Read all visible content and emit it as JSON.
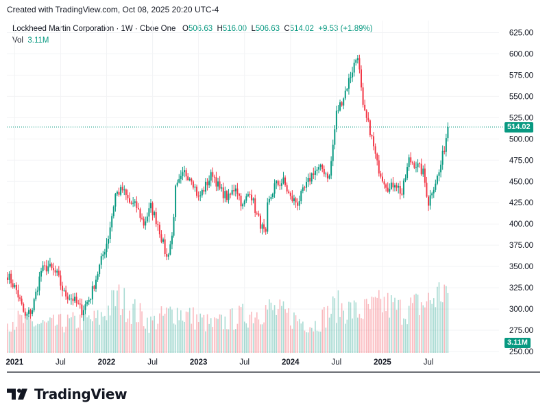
{
  "caption": "Created with TradingView.com, Oct 08, 2025 20:20 UTC-4",
  "legend": {
    "symbol": "Lockheed Martin Corporation · 1W · Cboe One",
    "o_label": "O",
    "o_value": "506.63",
    "h_label": "H",
    "h_value": "516.00",
    "l_label": "L",
    "l_value": "506.63",
    "c_label": "C",
    "c_value": "514.02",
    "change": "+9.53 (+1.89%)",
    "vol_label": "Vol",
    "vol_value": "3.11M"
  },
  "brand": {
    "name": "TradingView"
  },
  "colors": {
    "up": "#089981",
    "down": "#F23645",
    "grid": "#F2F3F5",
    "text": "#131722"
  },
  "chart_data": {
    "type": "candlestick",
    "title": "Lockheed Martin Corporation · 1W · Cboe One",
    "y_ticks": [
      "625.00",
      "600.00",
      "575.00",
      "550.00",
      "525.00",
      "500.00",
      "475.00",
      "450.00",
      "425.00",
      "400.00",
      "375.00",
      "350.00",
      "325.00",
      "300.00",
      "275.00",
      "250.00"
    ],
    "x_ticks": [
      {
        "label": "2021",
        "bold": true
      },
      {
        "label": "Jul",
        "bold": false
      },
      {
        "label": "2022",
        "bold": true
      },
      {
        "label": "Jul",
        "bold": false
      },
      {
        "label": "2023",
        "bold": true
      },
      {
        "label": "Jul",
        "bold": false
      },
      {
        "label": "2024",
        "bold": true
      },
      {
        "label": "Jul",
        "bold": false
      },
      {
        "label": "2025",
        "bold": true
      },
      {
        "label": "Jul",
        "bold": false
      }
    ],
    "ylim": [
      250,
      625
    ],
    "last_price": "514.02",
    "last_volume": "3.11M",
    "price_path": [
      [
        "2020-12-28",
        340
      ],
      [
        "2021-02-01",
        322
      ],
      [
        "2021-03-08",
        290
      ],
      [
        "2021-04-05",
        300
      ],
      [
        "2021-05-10",
        345
      ],
      [
        "2021-06-07",
        350
      ],
      [
        "2021-07-12",
        340
      ],
      [
        "2021-08-09",
        318
      ],
      [
        "2021-09-13",
        312
      ],
      [
        "2021-10-18",
        298
      ],
      [
        "2021-11-22",
        315
      ],
      [
        "2021-12-27",
        350
      ],
      [
        "2022-01-31",
        385
      ],
      [
        "2022-02-28",
        435
      ],
      [
        "2022-03-28",
        440
      ],
      [
        "2022-04-25",
        425
      ],
      [
        "2022-05-23",
        420
      ],
      [
        "2022-06-20",
        400
      ],
      [
        "2022-07-18",
        420
      ],
      [
        "2022-08-15",
        400
      ],
      [
        "2022-09-19",
        360
      ],
      [
        "2022-10-10",
        385
      ],
      [
        "2022-10-24",
        440
      ],
      [
        "2022-11-28",
        460
      ],
      [
        "2022-12-26",
        455
      ],
      [
        "2023-01-23",
        430
      ],
      [
        "2023-02-20",
        445
      ],
      [
        "2023-03-20",
        460
      ],
      [
        "2023-04-17",
        440
      ],
      [
        "2023-05-22",
        430
      ],
      [
        "2023-06-19",
        445
      ],
      [
        "2023-07-17",
        420
      ],
      [
        "2023-08-14",
        440
      ],
      [
        "2023-09-11",
        410
      ],
      [
        "2023-10-16",
        385
      ],
      [
        "2023-10-23",
        420
      ],
      [
        "2023-11-20",
        445
      ],
      [
        "2023-12-25",
        450
      ],
      [
        "2024-01-22",
        430
      ],
      [
        "2024-02-19",
        425
      ],
      [
        "2024-03-25",
        445
      ],
      [
        "2024-04-22",
        462
      ],
      [
        "2024-05-27",
        465
      ],
      [
        "2024-06-24",
        455
      ],
      [
        "2024-07-22",
        530
      ],
      [
        "2024-08-19",
        550
      ],
      [
        "2024-09-16",
        575
      ],
      [
        "2024-10-14",
        600
      ],
      [
        "2024-11-04",
        535
      ],
      [
        "2024-12-02",
        510
      ],
      [
        "2024-12-30",
        470
      ],
      [
        "2025-01-20",
        455
      ],
      [
        "2025-02-17",
        440
      ],
      [
        "2025-03-10",
        450
      ],
      [
        "2025-04-07",
        435
      ],
      [
        "2025-05-05",
        475
      ],
      [
        "2025-06-02",
        470
      ],
      [
        "2025-06-30",
        460
      ],
      [
        "2025-07-21",
        425
      ],
      [
        "2025-08-04",
        440
      ],
      [
        "2025-09-01",
        460
      ],
      [
        "2025-09-22",
        490
      ],
      [
        "2025-10-06",
        514.02
      ]
    ],
    "volume_path_millions": [
      [
        "2020-12-28",
        1.6
      ],
      [
        "2021-06-07",
        1.3
      ],
      [
        "2021-12-27",
        1.6
      ],
      [
        "2022-03-07",
        2.6
      ],
      [
        "2022-07-18",
        1.4
      ],
      [
        "2022-10-24",
        2.0
      ],
      [
        "2023-03-20",
        1.3
      ],
      [
        "2023-10-23",
        2.1
      ],
      [
        "2024-04-22",
        1.3
      ],
      [
        "2024-07-22",
        2.2
      ],
      [
        "2024-10-21",
        1.9
      ],
      [
        "2025-01-27",
        2.3
      ],
      [
        "2025-04-07",
        2.0
      ],
      [
        "2025-07-21",
        2.4
      ],
      [
        "2025-10-06",
        3.11
      ]
    ]
  }
}
